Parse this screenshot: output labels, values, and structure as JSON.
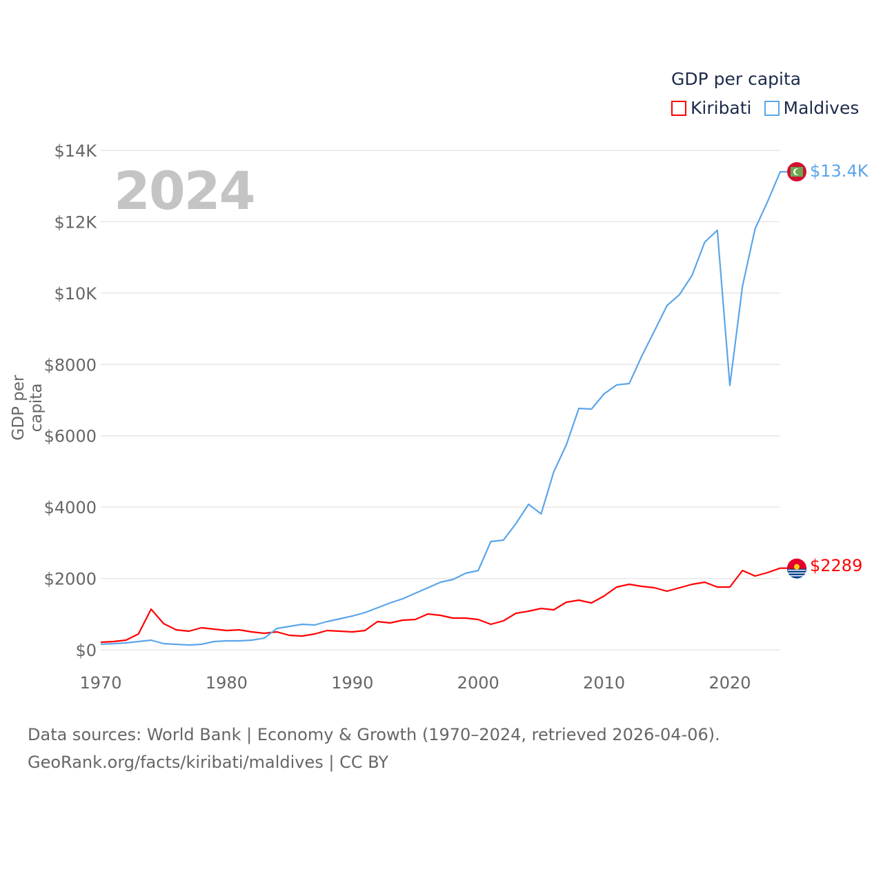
{
  "chart_data": {
    "type": "line",
    "title": "GDP per capita",
    "xlabel": "",
    "ylabel": "GDP per capita",
    "year_watermark": "2024",
    "xlim": [
      1970,
      2024
    ],
    "ylim": [
      0,
      14000
    ],
    "grid": true,
    "legend_placement": "top-right",
    "x_ticks": [
      "1970",
      "1980",
      "1990",
      "2000",
      "2010",
      "2020"
    ],
    "y_ticks": [
      "$0",
      "$2000",
      "$4000",
      "$6000",
      "$8000",
      "$10K",
      "$12K",
      "$14K"
    ],
    "x": [
      1970,
      1971,
      1972,
      1973,
      1974,
      1975,
      1976,
      1977,
      1978,
      1979,
      1980,
      1981,
      1982,
      1983,
      1984,
      1985,
      1986,
      1987,
      1988,
      1989,
      1990,
      1991,
      1992,
      1993,
      1994,
      1995,
      1996,
      1997,
      1998,
      1999,
      2000,
      2001,
      2002,
      2003,
      2004,
      2005,
      2006,
      2007,
      2008,
      2009,
      2010,
      2011,
      2012,
      2013,
      2014,
      2015,
      2016,
      2017,
      2018,
      2019,
      2020,
      2021,
      2022,
      2023,
      2024
    ],
    "series": [
      {
        "name": "Kiribati",
        "color": "#ff0000",
        "end_label": "$2289",
        "flag": "kiribati-flag",
        "values": [
          213,
          232,
          270,
          445,
          1141,
          735,
          561,
          522,
          619,
          580,
          541,
          561,
          503,
          464,
          503,
          406,
          387,
          445,
          541,
          522,
          503,
          541,
          793,
          754,
          832,
          851,
          1006,
          967,
          890,
          890,
          851,
          716,
          812,
          1025,
          1083,
          1160,
          1122,
          1334,
          1392,
          1315,
          1508,
          1760,
          1837,
          1779,
          1740,
          1644,
          1740,
          1837,
          1895,
          1760,
          1760,
          2224,
          2069,
          2166,
          2289
        ]
      },
      {
        "name": "Maldives",
        "color": "#5ba5ea",
        "end_label": "$13.4K",
        "flag": "maldives-flag",
        "values": [
          155,
          174,
          193,
          232,
          270,
          174,
          155,
          135,
          155,
          232,
          251,
          251,
          270,
          329,
          600,
          658,
          716,
          696,
          793,
          870,
          948,
          1044,
          1180,
          1315,
          1431,
          1586,
          1740,
          1895,
          1972,
          2147,
          2224,
          3036,
          3075,
          3539,
          4080,
          3810,
          4989,
          5743,
          6768,
          6749,
          7175,
          7426,
          7465,
          8238,
          8935,
          9650,
          9960,
          10500,
          11430,
          11760,
          7410,
          10190,
          11800,
          12570,
          13400
        ]
      }
    ]
  },
  "footer": {
    "line1": "Data sources: World Bank | Economy & Growth (1970–2024, retrieved 2026-04-06).",
    "line2": "GeoRank.org/facts/kiribati/maldives | CC BY"
  }
}
